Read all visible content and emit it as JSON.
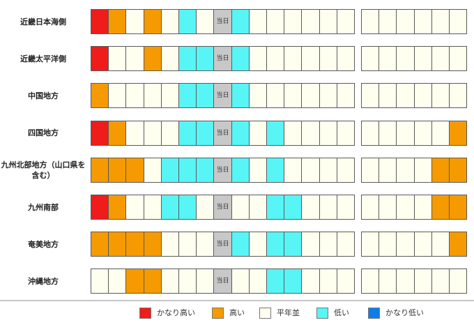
{
  "colors": {
    "very_high": "#f01b1b",
    "high": "#f59a00",
    "normal": "#fffff0",
    "low": "#57f5f5",
    "very_low": "#0e7dea",
    "today": "#c8c8c8"
  },
  "today_label": "当日",
  "chart_data": {
    "type": "heatmap",
    "columns_left": 15,
    "columns_right": 6,
    "today_column": 7,
    "rows": [
      {
        "region": "近畿日本海側",
        "left": [
          "very_high",
          "high",
          "normal",
          "high",
          "normal",
          "low",
          "normal",
          "today",
          "low",
          "normal",
          "normal",
          "normal",
          "normal",
          "normal",
          "normal"
        ],
        "right": [
          "normal",
          "normal",
          "normal",
          "normal",
          "normal",
          "normal"
        ]
      },
      {
        "region": "近畿太平洋側",
        "left": [
          "very_high",
          "normal",
          "normal",
          "high",
          "normal",
          "low",
          "low",
          "today",
          "low",
          "normal",
          "normal",
          "normal",
          "normal",
          "normal",
          "normal"
        ],
        "right": [
          "normal",
          "normal",
          "normal",
          "normal",
          "normal",
          "normal"
        ]
      },
      {
        "region": "中国地方",
        "left": [
          "high",
          "normal",
          "normal",
          "normal",
          "normal",
          "low",
          "low",
          "today",
          "low",
          "normal",
          "normal",
          "normal",
          "normal",
          "normal",
          "normal"
        ],
        "right": [
          "normal",
          "normal",
          "normal",
          "normal",
          "normal",
          "normal"
        ]
      },
      {
        "region": "四国地方",
        "left": [
          "very_high",
          "high",
          "normal",
          "normal",
          "normal",
          "low",
          "low",
          "today",
          "low",
          "normal",
          "low",
          "normal",
          "normal",
          "normal",
          "normal"
        ],
        "right": [
          "normal",
          "normal",
          "normal",
          "normal",
          "normal",
          "high"
        ]
      },
      {
        "region": "九州北部地方（山口県を含む）",
        "left": [
          "high",
          "high",
          "high",
          "normal",
          "low",
          "low",
          "low",
          "today",
          "low",
          "normal",
          "low",
          "normal",
          "normal",
          "normal",
          "normal"
        ],
        "right": [
          "normal",
          "normal",
          "normal",
          "normal",
          "high",
          "high"
        ]
      },
      {
        "region": "九州南部",
        "left": [
          "very_high",
          "high",
          "normal",
          "normal",
          "low",
          "low",
          "normal",
          "today",
          "normal",
          "normal",
          "low",
          "low",
          "normal",
          "normal",
          "normal"
        ],
        "right": [
          "normal",
          "normal",
          "normal",
          "normal",
          "high",
          "high"
        ]
      },
      {
        "region": "奄美地方",
        "left": [
          "high",
          "high",
          "high",
          "high",
          "normal",
          "normal",
          "normal",
          "today",
          "low",
          "normal",
          "low",
          "low",
          "normal",
          "normal",
          "normal"
        ],
        "right": [
          "normal",
          "normal",
          "normal",
          "normal",
          "normal",
          "high"
        ]
      },
      {
        "region": "沖縄地方",
        "left": [
          "normal",
          "normal",
          "high",
          "high",
          "normal",
          "normal",
          "normal",
          "today",
          "normal",
          "normal",
          "low",
          "low",
          "normal",
          "normal",
          "normal"
        ],
        "right": [
          "normal",
          "normal",
          "normal",
          "normal",
          "normal",
          "normal"
        ]
      }
    ]
  },
  "legend": [
    {
      "key": "very_high",
      "label": "かなり高い"
    },
    {
      "key": "high",
      "label": "高い"
    },
    {
      "key": "normal",
      "label": "平年並"
    },
    {
      "key": "low",
      "label": "低い"
    },
    {
      "key": "very_low",
      "label": "かなり低い"
    }
  ]
}
